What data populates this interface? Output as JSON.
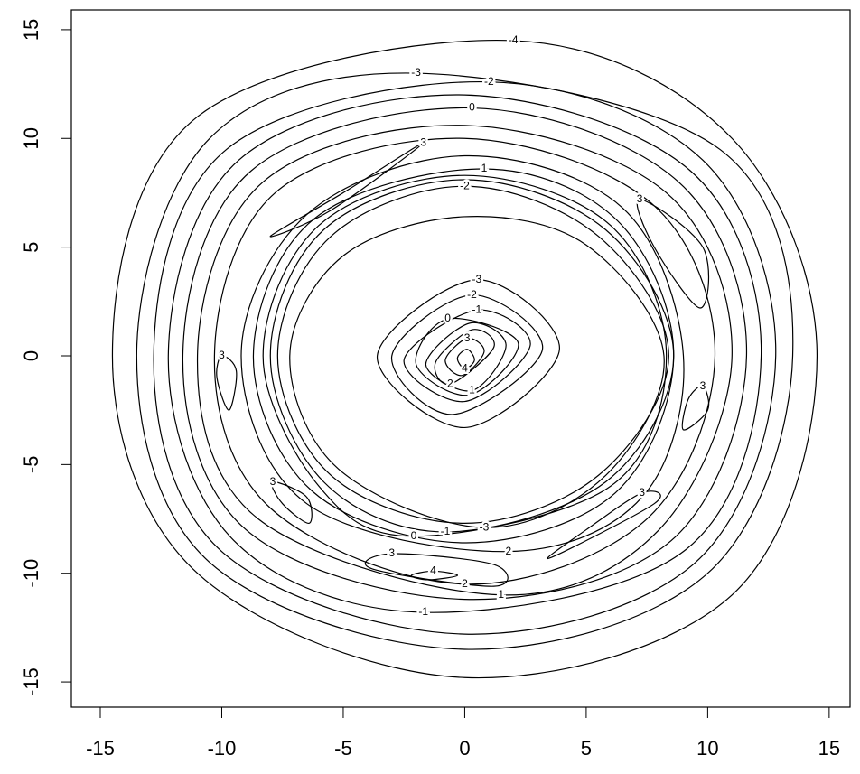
{
  "chart_data": {
    "type": "contour",
    "color": "#000000",
    "xlim": [
      -16.19,
      15.86
    ],
    "ylim": [
      -16.16,
      15.91
    ],
    "xticks": [
      -15,
      -10,
      -5,
      0,
      5,
      10,
      15
    ],
    "yticks": [
      -15,
      -10,
      -5,
      0,
      5,
      10,
      15
    ],
    "contours": [
      {
        "level": -4,
        "x": [
          2,
          11,
          14.5,
          11,
          0,
          -11,
          -14.5,
          -11
        ],
        "y": [
          14.5,
          10,
          0,
          -11,
          -14.8,
          -10,
          0,
          11
        ]
      },
      {
        "level": -3,
        "x": [
          -2,
          10.5,
          13.5,
          10,
          0,
          -10.5,
          -13.5,
          -10.5
        ],
        "y": [
          13,
          9.5,
          0,
          -10,
          -13.5,
          -9.5,
          0,
          10
        ]
      },
      {
        "level": -2,
        "x": [
          1,
          9.8,
          12.8,
          9.5,
          0,
          -10,
          -12.8,
          -9.8
        ],
        "y": [
          12.6,
          9,
          0,
          -9.5,
          -12.8,
          -9,
          0,
          9.5
        ]
      },
      {
        "level": -1,
        "x": [
          -1.7,
          -9.5,
          -12.2,
          -9.3,
          0,
          9.3,
          12.2,
          9
        ],
        "y": [
          -11.8,
          -8.5,
          0,
          9,
          12,
          8.5,
          0,
          -9
        ]
      },
      {
        "level": 0,
        "x": [
          0.3,
          8.8,
          11.6,
          8.5,
          0,
          -9,
          -11.6,
          -8.8
        ],
        "y": [
          11.4,
          8,
          0,
          -8.5,
          -11.2,
          -8,
          0,
          8.5
        ]
      },
      {
        "level": 1,
        "x": [
          1.5,
          -8.5,
          -11,
          -8.3,
          0,
          8.3,
          11,
          8
        ],
        "y": [
          -11,
          -7.5,
          0,
          8,
          10.6,
          7.5,
          0,
          -8
        ]
      },
      {
        "level": 2,
        "x": [
          0,
          -8,
          -10.3,
          -7.8,
          0,
          7.7,
          10.3,
          7.5
        ],
        "y": [
          -10.5,
          -7,
          0,
          7.5,
          10,
          7,
          0,
          -7.5
        ]
      },
      {
        "level": 2,
        "x": [
          1.8,
          7.3,
          9,
          6.5,
          0,
          -6.5,
          -9.2,
          -6.5
        ],
        "y": [
          -9,
          -6.5,
          0,
          6.8,
          9.2,
          6.5,
          0,
          -6.8
        ]
      },
      {
        "level": 1,
        "x": [
          0.8,
          6.3,
          8.6,
          6.2,
          0,
          -6.3,
          -8.7,
          -6.2
        ],
        "y": [
          8.6,
          6.2,
          0,
          -6.3,
          -8.6,
          -6.2,
          0,
          6.3
        ]
      },
      {
        "level": 0,
        "x": [
          -2.1,
          -6,
          -8.3,
          -6,
          0,
          6,
          8.3,
          6
        ],
        "y": [
          -8.3,
          -6,
          0,
          6,
          8.3,
          6,
          0,
          -6
        ]
      },
      {
        "level": -1,
        "x": [
          -0.8,
          -5.8,
          -8,
          -5.8,
          0,
          5.8,
          8.6,
          5.8
        ],
        "y": [
          -8.1,
          -5.8,
          0,
          5.8,
          8.1,
          5.8,
          0,
          -5.8
        ]
      },
      {
        "level": -2,
        "x": [
          0,
          5.5,
          8.4,
          5.5,
          0,
          -5.5,
          -7.7,
          -5.5
        ],
        "y": [
          7.8,
          5.5,
          0,
          -5.5,
          -7.7,
          -5.5,
          0,
          5.5
        ]
      },
      {
        "level": -3,
        "x": [
          0.8,
          5.8,
          8.2,
          5,
          0,
          -5,
          -7.2,
          -5.2
        ],
        "y": [
          -7.9,
          -5.5,
          0,
          5.1,
          6.4,
          4.6,
          0,
          -5.2
        ]
      },
      {
        "level": -3,
        "x": [
          0.5,
          -3.6,
          0,
          3.9
        ],
        "y": [
          3.5,
          0,
          -3.3,
          0.3
        ]
      },
      {
        "level": -2,
        "x": [
          0.3,
          -3,
          -0.5,
          3.2
        ],
        "y": [
          2.8,
          0,
          -2.7,
          0.3
        ]
      },
      {
        "level": -1,
        "x": [
          0.5,
          -2.5,
          0,
          2.7
        ],
        "y": [
          2.1,
          -0.2,
          -2.1,
          0.5
        ]
      },
      {
        "level": 0,
        "x": [
          -0.7,
          -2,
          0.2,
          2.2
        ],
        "y": [
          1.7,
          -0.4,
          -1.8,
          0.6
        ]
      },
      {
        "level": 1,
        "x": [
          0.3,
          1.7,
          0.2,
          -1.6
        ],
        "y": [
          -1.6,
          0.5,
          1.5,
          -0.4
        ]
      },
      {
        "level": 2,
        "x": [
          -0.6,
          1.2,
          0.3,
          -1.2
        ],
        "y": [
          -1.3,
          0.4,
          1.2,
          -0.3
        ]
      },
      {
        "level": 3,
        "x": [
          0.1,
          -0.8,
          -0.1,
          0.8
        ],
        "y": [
          0.8,
          -0.2,
          -0.9,
          0.2
        ]
      },
      {
        "level": 4,
        "x": [
          0,
          -0.3,
          0.1,
          0.4
        ],
        "y": [
          -0.6,
          -0.1,
          0.3,
          -0.2
        ]
      },
      {
        "level": 3,
        "x": [
          -1.7,
          -5,
          -8,
          -5.5
        ],
        "y": [
          9.8,
          7.5,
          5.5,
          6.7
        ]
      },
      {
        "level": 3,
        "x": [
          7.2,
          9.8,
          9.7,
          7.8
        ],
        "y": [
          7.2,
          5,
          2.2,
          5
        ]
      },
      {
        "level": 3,
        "x": [
          -10,
          -9.4,
          -9.7,
          -10.2
        ],
        "y": [
          0,
          -0.7,
          -2.5,
          -1
        ]
      },
      {
        "level": 3,
        "x": [
          9.8,
          10,
          9,
          9.2
        ],
        "y": [
          -1.4,
          -2.5,
          -3.4,
          -2
        ]
      },
      {
        "level": 3,
        "x": [
          -7.9,
          -6.5,
          -6.4,
          -7.5
        ],
        "y": [
          -5.8,
          -6.5,
          -7.7,
          -6.8
        ]
      },
      {
        "level": 3,
        "x": [
          7.3,
          7.8,
          3.5,
          5
        ],
        "y": [
          -6.3,
          -6.8,
          -9.3,
          -8
        ]
      },
      {
        "level": 3,
        "x": [
          -3,
          1.2,
          1.2,
          -3.8
        ],
        "y": [
          -9.1,
          -9.6,
          -10.6,
          -9.8
        ]
      },
      {
        "level": 4,
        "x": [
          -1.3,
          -0.3,
          -1.5,
          -2.2
        ],
        "y": [
          -9.9,
          -10.1,
          -10.3,
          -10.1
        ]
      }
    ]
  }
}
